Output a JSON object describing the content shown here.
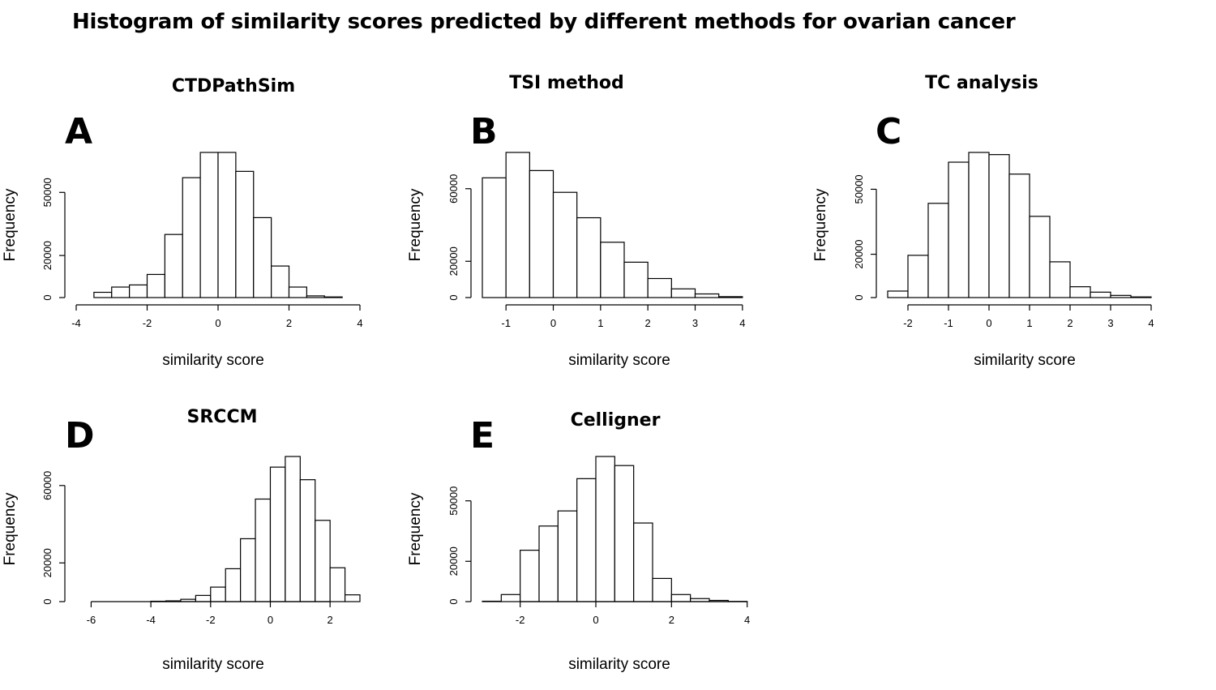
{
  "title": "Histogram of similarity scores predicted by different methods for ovarian cancer",
  "chart_data": [
    {
      "type": "bar",
      "panel": "A",
      "title": "CTDPathSim",
      "xlabel": "similarity score",
      "ylabel": "Frequency",
      "bin_width": 0.5,
      "bin_start": -3.5,
      "values": [
        2500,
        5000,
        6000,
        11000,
        30000,
        57000,
        69000,
        69000,
        60000,
        38000,
        15000,
        5000,
        800,
        300
      ],
      "xlim": [
        -4,
        4
      ],
      "ylim": [
        0,
        69000
      ],
      "xticks": [
        -4,
        -2,
        0,
        2,
        4
      ],
      "yticks": [
        0,
        20000,
        50000
      ],
      "ytick_labels": [
        "0",
        "20000",
        "50000"
      ]
    },
    {
      "type": "bar",
      "panel": "B",
      "title": "TSI method",
      "xlabel": "similarity score",
      "ylabel": "Frequency",
      "bin_width": 0.5,
      "bin_start": -1.5,
      "values": [
        66000,
        80000,
        70000,
        58000,
        44000,
        30500,
        19500,
        10500,
        4800,
        2000,
        500
      ],
      "xlim": [
        -1.5,
        4.5
      ],
      "ylim": [
        0,
        80000
      ],
      "xticks": [
        -1,
        0,
        1,
        2,
        3,
        4
      ],
      "yticks": [
        0,
        20000,
        60000
      ],
      "ytick_labels": [
        "0",
        "20000",
        "60000"
      ]
    },
    {
      "type": "bar",
      "panel": "C",
      "title": "TC analysis",
      "xlabel": "similarity score",
      "ylabel": "Frequency",
      "bin_width": 0.5,
      "bin_start": -2.5,
      "values": [
        3000,
        19500,
        43500,
        62500,
        67000,
        66000,
        57000,
        37500,
        16500,
        5000,
        2500,
        1000,
        300
      ],
      "xlim": [
        -2.5,
        4.5
      ],
      "ylim": [
        0,
        67000
      ],
      "xticks": [
        -2,
        -1,
        0,
        1,
        2,
        3,
        4
      ],
      "yticks": [
        0,
        20000,
        50000
      ],
      "ytick_labels": [
        "0",
        "20000",
        "50000"
      ]
    },
    {
      "type": "bar",
      "panel": "D",
      "title": "SRCCM",
      "xlabel": "similarity score",
      "ylabel": "Frequency",
      "bin_width": 0.5,
      "bin_start": -6,
      "values": [
        0,
        0,
        0,
        0,
        200,
        400,
        1200,
        3200,
        7500,
        17000,
        32500,
        53000,
        69500,
        75000,
        63000,
        42000,
        17500,
        3500
      ],
      "xlim": [
        -6.5,
        3
      ],
      "ylim": [
        0,
        75000
      ],
      "xticks": [
        -6,
        -4,
        -2,
        0,
        2
      ],
      "yticks": [
        0,
        20000,
        60000
      ],
      "ytick_labels": [
        "0",
        "20000",
        "60000"
      ]
    },
    {
      "type": "bar",
      "panel": "E",
      "title": "Celligner",
      "xlabel": "similarity score",
      "ylabel": "Frequency",
      "bin_width": 0.5,
      "bin_start": -3,
      "values": [
        200,
        3500,
        25500,
        37500,
        45000,
        61000,
        72000,
        67500,
        39000,
        11500,
        3500,
        1500,
        600,
        100
      ],
      "xlim": [
        -3,
        4.5
      ],
      "ylim": [
        0,
        72000
      ],
      "xticks": [
        -2,
        0,
        2,
        4
      ],
      "yticks": [
        0,
        20000,
        50000
      ],
      "ytick_labels": [
        "0",
        "20000",
        "50000"
      ]
    }
  ]
}
